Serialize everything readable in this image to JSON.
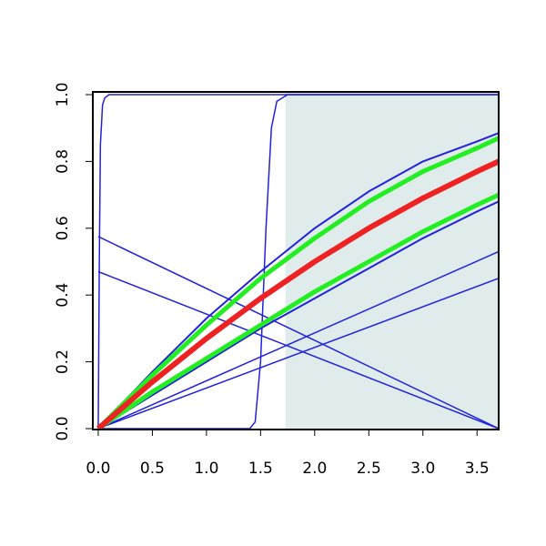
{
  "chart_data": {
    "type": "line",
    "xlim": [
      -0.05,
      3.7
    ],
    "ylim": [
      0,
      1
    ],
    "xticks": [
      {
        "value": 0,
        "label": "0.0"
      },
      0.5,
      {
        "value": 1,
        "label": "1.0"
      },
      1.5,
      {
        "value": 2,
        "label": "2.0"
      },
      2.5,
      {
        "value": 3,
        "label": "3.0"
      },
      3.5
    ],
    "yticks": [
      {
        "value": 0,
        "label": "0.0"
      },
      0.2,
      0.4,
      0.6,
      0.8,
      {
        "value": 1,
        "label": "1.0"
      }
    ],
    "shaded_region": {
      "xlim": [
        1.73,
        3.7
      ],
      "color": "#e0ecec"
    },
    "series": [
      {
        "color": "#2222dd",
        "line_width": 2,
        "x": [
          0,
          0.5,
          1,
          1.5,
          2,
          2.5,
          3,
          3.5,
          3.7
        ],
        "values": [
          0,
          0.17,
          0.33,
          0.47,
          0.6,
          0.71,
          0.8,
          0.86,
          0.885
        ]
      },
      {
        "color": "#2222dd",
        "line_width": 2,
        "x": [
          0,
          0.5,
          1,
          1.5,
          2,
          2.5,
          3,
          3.5,
          3.7
        ],
        "values": [
          0,
          0.1,
          0.2,
          0.3,
          0.39,
          0.48,
          0.57,
          0.65,
          0.68
        ]
      },
      {
        "color": "#2222dd",
        "line_width": 1.5,
        "x": [
          0,
          3.7
        ],
        "values": [
          0,
          0.53
        ]
      },
      {
        "color": "#2222dd",
        "line_width": 1.5,
        "x": [
          0,
          3.7
        ],
        "values": [
          0,
          0.45
        ]
      },
      {
        "color": "#2222dd",
        "line_width": 1.5,
        "x": [
          0,
          3.7
        ],
        "values": [
          0.575,
          0
        ]
      },
      {
        "color": "#2222dd",
        "line_width": 1.5,
        "x": [
          0,
          3.7
        ],
        "values": [
          0.47,
          0
        ]
      },
      {
        "color": "#2222dd",
        "line_width": 1.5,
        "x": [
          0,
          0.01,
          0.02,
          0.04,
          0.06,
          0.1,
          0.2,
          3.7
        ],
        "values": [
          0,
          0.5,
          0.85,
          0.97,
          0.99,
          1,
          1,
          1
        ]
      },
      {
        "color": "#2222dd",
        "line_width": 1.5,
        "x": [
          0,
          1.4,
          1.45,
          1.5,
          1.55,
          1.6,
          1.65,
          1.75,
          3.7
        ],
        "values": [
          0,
          0,
          0.02,
          0.2,
          0.6,
          0.9,
          0.98,
          1,
          1
        ]
      },
      {
        "color": "#22ee22",
        "line_width": 5,
        "x": [
          0,
          0.5,
          1,
          1.5,
          2,
          2.5,
          3,
          3.5,
          3.7
        ],
        "values": [
          0,
          0.16,
          0.31,
          0.45,
          0.57,
          0.68,
          0.77,
          0.84,
          0.87
        ]
      },
      {
        "color": "#22ee22",
        "line_width": 5,
        "x": [
          0,
          0.5,
          1,
          1.5,
          2,
          2.5,
          3,
          3.5,
          3.7
        ],
        "values": [
          0,
          0.11,
          0.21,
          0.31,
          0.41,
          0.5,
          0.59,
          0.67,
          0.7
        ]
      },
      {
        "color": "#ee2222",
        "line_width": 6,
        "x": [
          0,
          0.5,
          1,
          1.5,
          2,
          2.5,
          3,
          3.5,
          3.7
        ],
        "values": [
          0,
          0.14,
          0.27,
          0.39,
          0.5,
          0.6,
          0.69,
          0.77,
          0.8
        ]
      }
    ]
  }
}
